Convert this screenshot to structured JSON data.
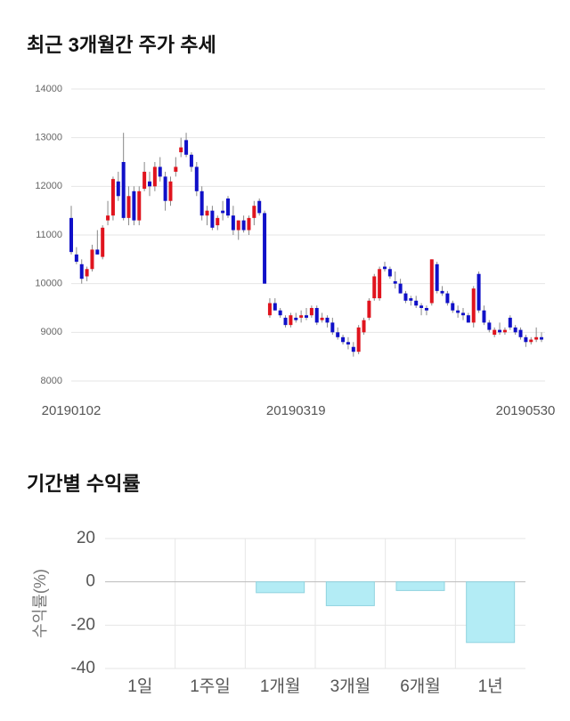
{
  "chart_data": [
    {
      "type": "candlestick",
      "title": "최근 3개월간 주가 추세",
      "categories": [
        "20190102",
        null,
        null,
        null,
        null,
        null,
        null,
        null,
        null,
        null,
        null,
        null,
        null,
        null,
        null,
        null,
        null,
        null,
        null,
        null,
        null,
        null,
        null,
        null,
        null,
        null,
        null,
        null,
        null,
        null,
        null,
        null,
        null,
        null,
        null,
        null,
        null,
        null,
        null,
        null,
        null,
        null,
        null,
        "20190319",
        null,
        null,
        null,
        null,
        null,
        null,
        null,
        null,
        null,
        null,
        null,
        null,
        null,
        null,
        null,
        null,
        null,
        null,
        null,
        null,
        null,
        null,
        null,
        null,
        null,
        null,
        null,
        null,
        null,
        null,
        null,
        null,
        null,
        null,
        null,
        null,
        null,
        null,
        null,
        null,
        null,
        null,
        null,
        null,
        null,
        null,
        "20190530"
      ],
      "open": [
        11350,
        10600,
        10400,
        10150,
        10300,
        10700,
        10550,
        11300,
        11400,
        12100,
        12500,
        11350,
        11900,
        11300,
        11950,
        12100,
        12000,
        12400,
        12200,
        11700,
        12300,
        12700,
        12950,
        12650,
        12400,
        11900,
        11400,
        11500,
        11200,
        11500,
        11750,
        11400,
        11100,
        11300,
        11100,
        11350,
        11700,
        11450,
        9350,
        9600,
        9450,
        9300,
        9150,
        9300,
        9300,
        9350,
        9350,
        9500,
        9250,
        9300,
        9200,
        9000,
        8900,
        8800,
        8700,
        8600,
        9000,
        9300,
        9700,
        9700,
        10350,
        10300,
        10050,
        10000,
        9800,
        9700,
        9650,
        9550,
        9500,
        9600,
        10400,
        9850,
        9800,
        9600,
        9450,
        9400,
        9350,
        9200,
        10200,
        9450,
        9200,
        8950,
        9050,
        9000,
        9300,
        9100,
        9050,
        8900,
        8800,
        8850,
        8900
      ],
      "high": [
        11600,
        10750,
        10500,
        10350,
        10800,
        11100,
        11200,
        11700,
        12200,
        12300,
        13100,
        12000,
        12000,
        12000,
        12500,
        12300,
        12500,
        12600,
        12300,
        12200,
        12600,
        13000,
        13100,
        12700,
        12500,
        12000,
        11600,
        11600,
        11400,
        11700,
        11800,
        11600,
        11300,
        11400,
        11400,
        11700,
        11750,
        11500,
        9700,
        9700,
        9500,
        9350,
        9400,
        9400,
        9450,
        9500,
        9550,
        9550,
        9400,
        9350,
        9300,
        9100,
        8950,
        8900,
        8800,
        9150,
        9300,
        9700,
        10200,
        10350,
        10450,
        10350,
        10250,
        10100,
        9850,
        9750,
        9750,
        9600,
        9550,
        10500,
        10450,
        9950,
        9850,
        9650,
        9550,
        9500,
        9400,
        9950,
        10250,
        9550,
        9250,
        9100,
        9200,
        9100,
        9350,
        9150,
        9100,
        8950,
        8900,
        9100,
        9000
      ],
      "low": [
        10600,
        10400,
        10000,
        10050,
        10250,
        10600,
        10500,
        11200,
        11300,
        11700,
        11300,
        11200,
        11200,
        11200,
        11900,
        11800,
        11900,
        12100,
        11500,
        11600,
        12200,
        12600,
        12600,
        12300,
        11800,
        11300,
        11200,
        11100,
        11100,
        11300,
        11350,
        11000,
        10900,
        11050,
        11000,
        11200,
        11400,
        10000,
        9300,
        9450,
        9300,
        9100,
        9100,
        9200,
        9200,
        9250,
        9300,
        9150,
        9200,
        9100,
        8950,
        8850,
        8750,
        8650,
        8500,
        8550,
        8950,
        9250,
        9650,
        9650,
        10250,
        10100,
        9900,
        9800,
        9600,
        9550,
        9500,
        9350,
        9350,
        9550,
        9800,
        9750,
        9550,
        9400,
        9300,
        9250,
        9200,
        9100,
        9400,
        9150,
        9000,
        8900,
        8950,
        8950,
        9050,
        8950,
        8850,
        8700,
        8750,
        8800,
        8800
      ],
      "close": [
        10650,
        10450,
        10100,
        10300,
        10700,
        10600,
        11150,
        11400,
        12150,
        11800,
        11350,
        11800,
        11300,
        11900,
        12300,
        12000,
        12400,
        12200,
        11700,
        12100,
        12400,
        12800,
        12650,
        12400,
        11900,
        11400,
        11500,
        11150,
        11350,
        11450,
        11400,
        11100,
        11300,
        11100,
        11350,
        11600,
        11450,
        10000,
        9600,
        9450,
        9350,
        9150,
        9350,
        9250,
        9350,
        9300,
        9500,
        9200,
        9300,
        9200,
        9000,
        8900,
        8800,
        8750,
        8600,
        9100,
        9250,
        9650,
        10150,
        10300,
        10300,
        10150,
        10000,
        9800,
        9650,
        9650,
        9550,
        9500,
        9450,
        10500,
        9850,
        9800,
        9600,
        9450,
        9400,
        9350,
        9200,
        9900,
        9450,
        9200,
        9050,
        9050,
        9000,
        9050,
        9100,
        9000,
        8900,
        8800,
        8850,
        8900,
        8850
      ],
      "up_color": "#e0141e",
      "down_color": "#1010c8",
      "ylim": [
        8000,
        14000
      ],
      "yticks": [
        8000,
        9000,
        10000,
        11000,
        12000,
        13000,
        14000
      ],
      "grid": true
    },
    {
      "type": "bar",
      "title": "기간별 수익률",
      "y_label": "수익률(%)",
      "categories": [
        "1일",
        "1주일",
        "1개월",
        "3개월",
        "6개월",
        "1년"
      ],
      "values": [
        0,
        0,
        -5,
        -11,
        -4,
        -28
      ],
      "color": "#b3ecf5",
      "ylim": [
        -40,
        20
      ],
      "yticks": [
        -40,
        -20,
        0,
        20
      ],
      "grid": true
    }
  ]
}
